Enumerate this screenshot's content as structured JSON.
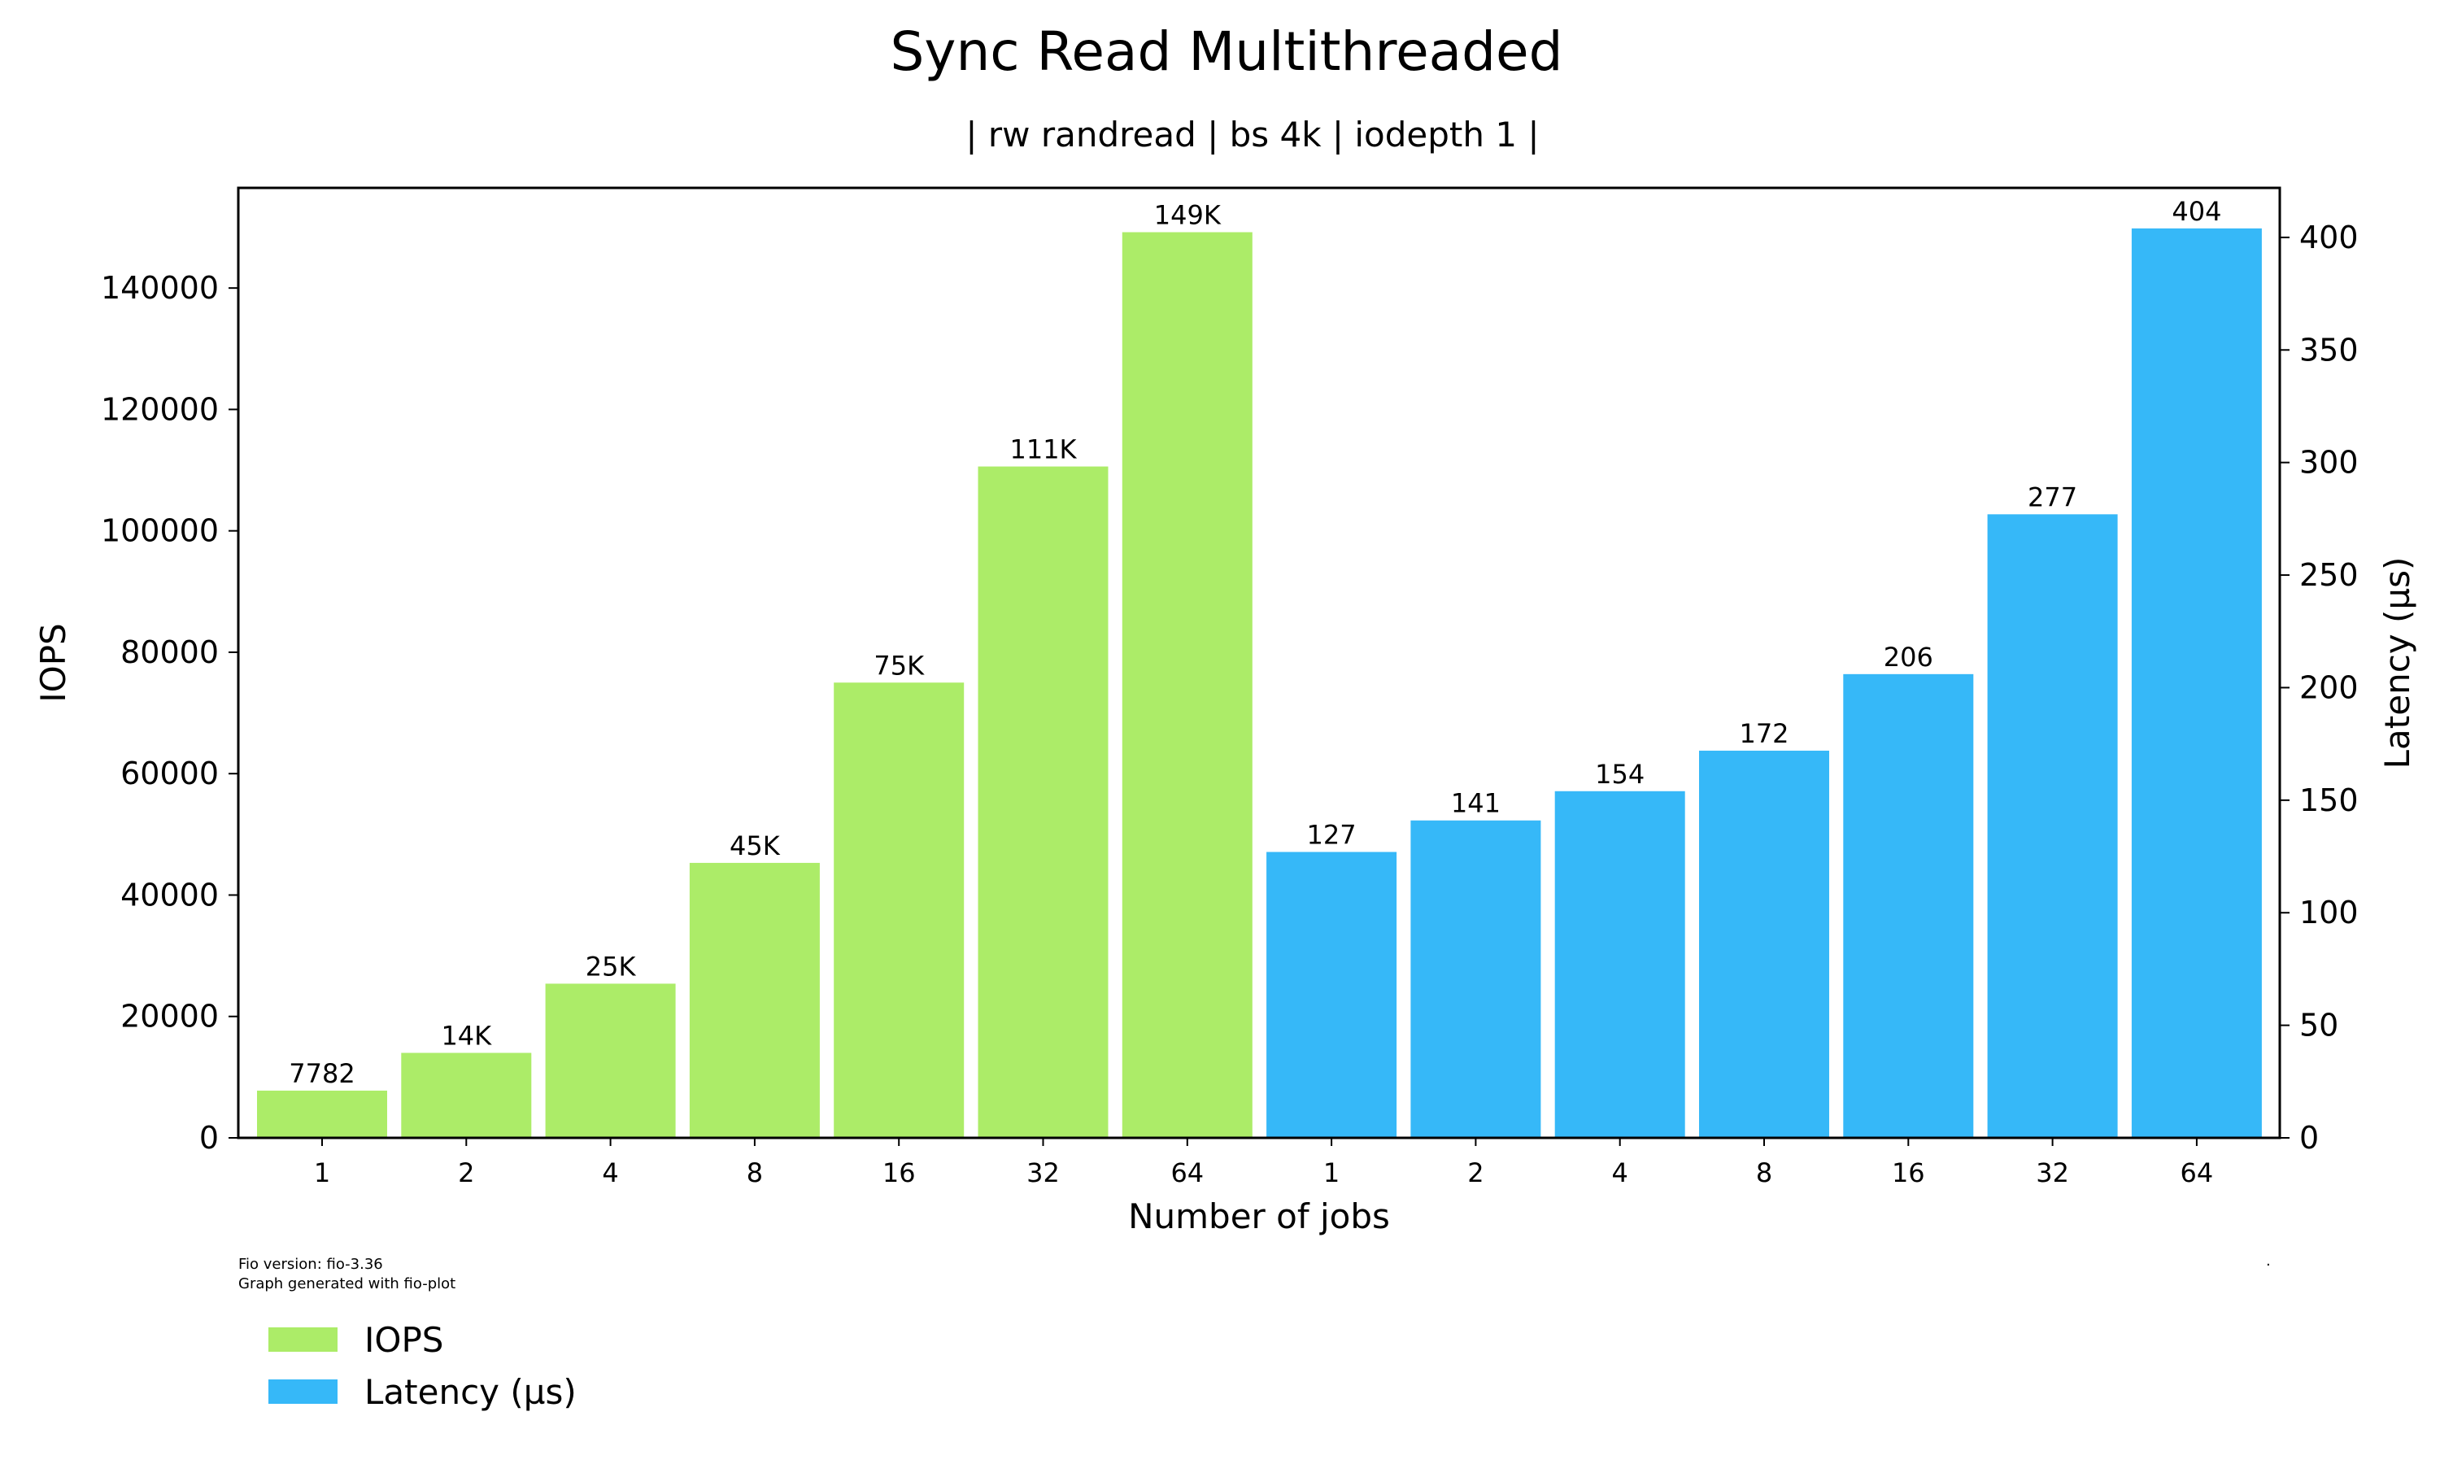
{
  "chart_data": {
    "type": "bar",
    "title": "Sync Read Multithreaded",
    "subtitle": "| rw randread | bs 4k | iodepth 1 |",
    "xlabel": "Number of jobs",
    "ylabel_left": "IOPS",
    "ylabel_right": "Latency (µs)",
    "ylim_left": [
      0,
      156500
    ],
    "ylim_right": [
      0,
      422
    ],
    "yticks_left": [
      0,
      20000,
      40000,
      60000,
      80000,
      100000,
      120000,
      140000
    ],
    "yticks_right": [
      0,
      50,
      100,
      150,
      200,
      250,
      300,
      350,
      400
    ],
    "series": [
      {
        "name": "IOPS",
        "color": "#acec68",
        "axis": "left",
        "categories": [
          "1",
          "2",
          "4",
          "8",
          "16",
          "32",
          "64"
        ],
        "values": [
          7782,
          14000,
          25400,
          45300,
          75000,
          110600,
          149200
        ],
        "labels": [
          "7782",
          "14K",
          "25K",
          "45K",
          "75K",
          "111K",
          "149K"
        ]
      },
      {
        "name": "Latency (µs)",
        "color": "#36b8f8",
        "axis": "right",
        "categories": [
          "1",
          "2",
          "4",
          "8",
          "16",
          "32",
          "64"
        ],
        "values": [
          127,
          141,
          154,
          172,
          206,
          277,
          404
        ],
        "labels": [
          "127",
          "141",
          "154",
          "172",
          "206",
          "277",
          "404"
        ]
      }
    ],
    "grid": false,
    "legend": "bottom-left"
  },
  "footer": {
    "line1": "Fio version: fio-3.36",
    "line2": "Graph generated with fio-plot",
    "mark": "."
  }
}
